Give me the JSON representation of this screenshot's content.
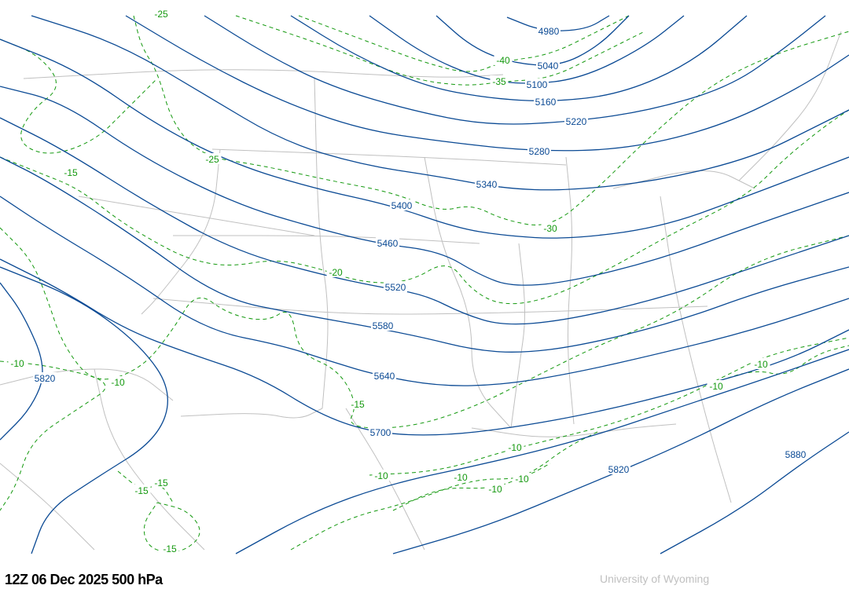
{
  "caption": "12Z 06 Dec 2025  500 hPa",
  "credit": "University of Wyoming",
  "colors": {
    "height_contour": "#0b4a94",
    "temperature_contour": "#14990f",
    "boundaries": "#c0c0c0",
    "background": "#ffffff"
  },
  "height_labels": [
    "4980",
    "5040",
    "5100",
    "5160",
    "5220",
    "5280",
    "5340",
    "5400",
    "5460",
    "5520",
    "5580",
    "5640",
    "5700",
    "5820",
    "5820",
    "5880"
  ],
  "temperature_labels": [
    "-25",
    "-40",
    "-35",
    "-25",
    "-15",
    "-30",
    "-20",
    "-10",
    "-10",
    "-15",
    "-10",
    "-10",
    "-10",
    "-10",
    "-10",
    "-10",
    "-10",
    "-15",
    "-15",
    "-15"
  ]
}
